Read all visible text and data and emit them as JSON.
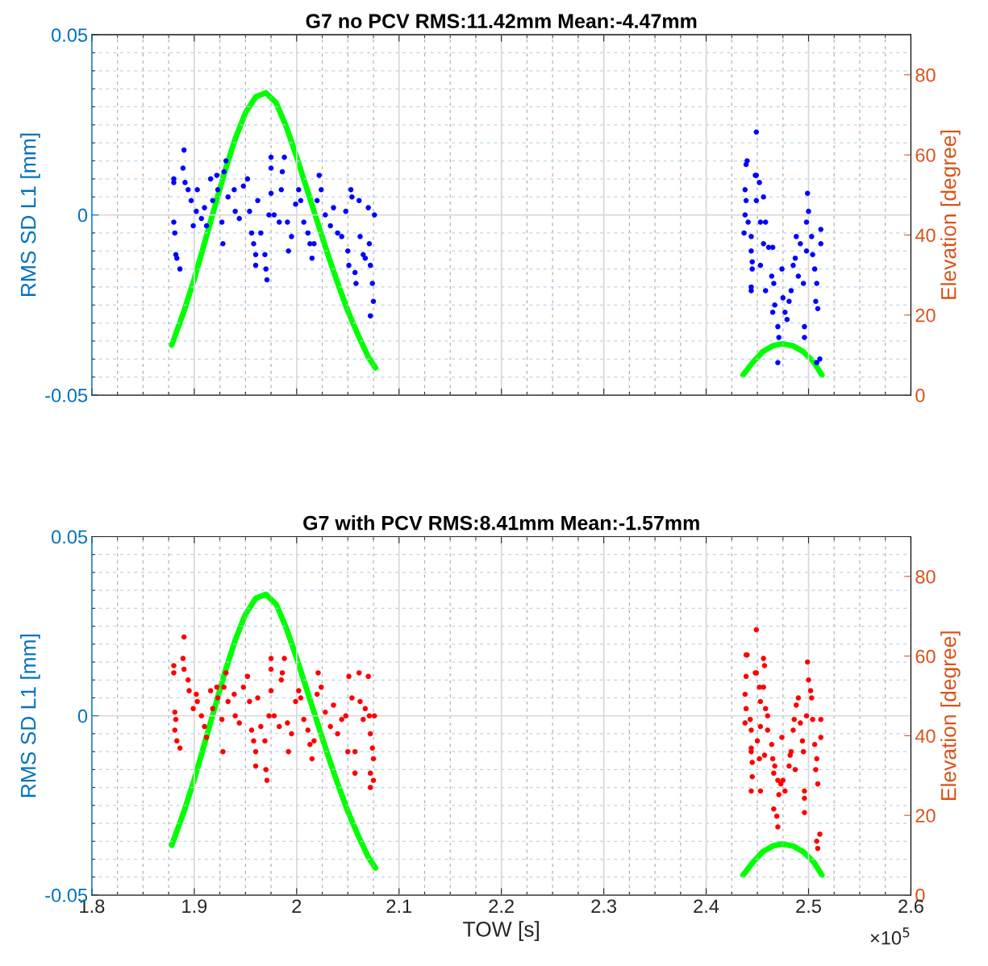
{
  "chart_data": [
    {
      "type": "scatter",
      "title": "G7 no PCV RMS:11.42mm Mean:-4.47mm",
      "ylabel": "RMS SD L1 [mm]",
      "y2label": "Elevation [degree]",
      "xlim": [
        1.8,
        2.6
      ],
      "xticks": [
        1.8,
        {
          "value": 1.825,
          "label": null
        },
        {
          "value": 1.85,
          "label": null
        },
        {
          "value": 1.875,
          "label": null
        },
        1.9,
        {
          "value": 1.925,
          "label": null
        },
        {
          "value": 1.95,
          "label": null
        },
        {
          "value": 1.975,
          "label": null
        },
        2,
        {
          "value": 2.025,
          "label": null
        },
        {
          "value": 2.05,
          "label": null
        },
        {
          "value": 2.075,
          "label": null
        },
        2.1,
        {
          "value": 2.125,
          "label": null
        },
        {
          "value": 2.15,
          "label": null
        },
        {
          "value": 2.175,
          "label": null
        },
        2.2,
        {
          "value": 2.225,
          "label": null
        },
        {
          "value": 2.25,
          "label": null
        },
        {
          "value": 2.275,
          "label": null
        },
        2.3,
        {
          "value": 2.325,
          "label": null
        },
        {
          "value": 2.35,
          "label": null
        },
        {
          "value": 2.375,
          "label": null
        },
        2.4,
        {
          "value": 2.425,
          "label": null
        },
        {
          "value": 2.45,
          "label": null
        },
        {
          "value": 2.475,
          "label": null
        },
        2.5,
        {
          "value": 2.525,
          "label": null
        },
        {
          "value": 2.55,
          "label": null
        },
        {
          "value": 2.575,
          "label": null
        },
        2.6
      ],
      "ylim": [
        -0.05,
        0.05
      ],
      "yticks": [
        -0.05,
        {
          "value": -0.045,
          "label": null
        },
        {
          "value": -0.04,
          "label": null
        },
        {
          "value": -0.035,
          "label": null
        },
        {
          "value": -0.03,
          "label": null
        },
        {
          "value": -0.025,
          "label": null
        },
        {
          "value": -0.02,
          "label": null
        },
        {
          "value": -0.015,
          "label": null
        },
        {
          "value": -0.01,
          "label": null
        },
        {
          "value": -0.005,
          "label": null
        },
        0,
        {
          "value": 0.005,
          "label": null
        },
        {
          "value": 0.01,
          "label": null
        },
        {
          "value": 0.015,
          "label": null
        },
        {
          "value": 0.02,
          "label": null
        },
        {
          "value": 0.025,
          "label": null
        },
        {
          "value": 0.03,
          "label": null
        },
        {
          "value": 0.035,
          "label": null
        },
        {
          "value": 0.04,
          "label": null
        },
        {
          "value": 0.045,
          "label": null
        },
        0.05
      ],
      "y2lim": [
        0,
        90
      ],
      "y2ticks": [
        0,
        20,
        40,
        60,
        80
      ],
      "grid": true,
      "marker": "circle",
      "tick_labels": "y",
      "series": [
        {
          "color": "#0000ff",
          "x": [
            1.88,
            1.88,
            1.88,
            1.881,
            1.882,
            1.883,
            1.886,
            1.89,
            1.889,
            1.891,
            1.894,
            1.897,
            1.899,
            1.902,
            1.903,
            1.907,
            1.91,
            1.912,
            1.916,
            1.918,
            1.922,
            1.923,
            1.927,
            1.928,
            1.929,
            1.931,
            1.933,
            1.939,
            1.94,
            1.944,
            1.948,
            1.952,
            1.954,
            1.956,
            1.958,
            1.96,
            1.96,
            1.962,
            1.965,
            1.969,
            1.97,
            1.971,
            1.973,
            1.975,
            1.975,
            1.975,
            1.978,
            1.983,
            1.985,
            1.986,
            1.988,
            1.991,
            1.992,
            1.995,
            1.999,
            2.002,
            2.004,
            2.007,
            2.011,
            2.013,
            2.015,
            2.017,
            2.02,
            2.022,
            2.024,
            2.028,
            2.033,
            2.036,
            2.04,
            2.044,
            2.048,
            2.05,
            2.051,
            2.053,
            2.054,
            2.057,
            2.058,
            2.061,
            2.062,
            2.065,
            2.067,
            2.07,
            2.071,
            2.072,
            2.074,
            2.075,
            2.072,
            2.076,
            2.439,
            2.44,
            2.438,
            2.439,
            2.438,
            2.437,
            2.441,
            2.444,
            2.444,
            2.445,
            2.445,
            2.444,
            2.444,
            2.448,
            2.449,
            2.449,
            2.452,
            2.449,
            2.456,
            2.453,
            2.458,
            2.456,
            2.461,
            2.453,
            2.465,
            2.464,
            2.466,
            2.458,
            2.465,
            2.467,
            2.47,
            2.471,
            2.47,
            2.474,
            2.475,
            2.477,
            2.479,
            2.481,
            2.483,
            2.485,
            2.487,
            2.488,
            2.49,
            2.492,
            2.495,
            2.496,
            2.496,
            2.498,
            2.499,
            2.5,
            2.498,
            2.503,
            2.504,
            2.506,
            2.508,
            2.507,
            2.509,
            2.512,
            2.512,
            2.511,
            2.508
          ],
          "values": [
            0.01,
            0.009,
            -0.002,
            -0.005,
            -0.011,
            -0.012,
            -0.015,
            0.018,
            0.013,
            0.009,
            0.007,
            0.004,
            -0.003,
            0.001,
            0.007,
            -0.001,
            0.002,
            -0.003,
            0.01,
            0.004,
            0.011,
            0.007,
            -0.002,
            -0.008,
            0.012,
            0.015,
            0.005,
            0.007,
            0.001,
            -0.001,
            0.008,
            0.01,
            0.001,
            -0.005,
            -0.008,
            -0.011,
            -0.014,
            0.004,
            -0.005,
            -0.011,
            -0.015,
            -0.018,
            0.0,
            0.013,
            0.016,
            0.006,
            0.0,
            -0.002,
            0.007,
            0.012,
            0.016,
            -0.002,
            -0.01,
            -0.006,
            0.003,
            0.007,
            0.004,
            -0.002,
            -0.005,
            -0.008,
            -0.012,
            -0.008,
            0.004,
            0.011,
            0.007,
            0.0,
            -0.003,
            0.002,
            -0.005,
            -0.006,
            0.001,
            -0.01,
            -0.014,
            0.007,
            0.005,
            -0.016,
            -0.019,
            0.004,
            -0.006,
            -0.011,
            -0.012,
            0.002,
            -0.008,
            -0.014,
            -0.019,
            -0.024,
            -0.028,
            0.0,
            0.014,
            0.015,
            0.007,
            0.004,
            0.0,
            -0.005,
            -0.002,
            -0.006,
            -0.01,
            -0.013,
            -0.015,
            -0.02,
            -0.021,
            0.011,
            0.011,
            0.023,
            0.009,
            0.004,
            0.005,
            -0.002,
            -0.002,
            -0.008,
            -0.009,
            -0.014,
            -0.009,
            -0.017,
            -0.019,
            -0.021,
            -0.027,
            -0.025,
            -0.031,
            -0.034,
            -0.041,
            -0.015,
            -0.023,
            -0.027,
            -0.029,
            -0.024,
            -0.021,
            -0.014,
            -0.012,
            -0.006,
            -0.017,
            -0.008,
            -0.019,
            -0.031,
            -0.034,
            -0.01,
            0.006,
            0.001,
            -0.002,
            -0.006,
            -0.011,
            -0.015,
            -0.019,
            -0.024,
            -0.026,
            -0.004,
            -0.008,
            -0.04,
            -0.041
          ]
        },
        {
          "type": "line",
          "axis": "y2",
          "color": "#00ff00",
          "marker": "none",
          "x": [
            1.878,
            1.89,
            1.9,
            1.91,
            1.92,
            1.93,
            1.94,
            1.95,
            1.96,
            1.97,
            1.98,
            1.99,
            2.0,
            2.01,
            2.02,
            2.03,
            2.04,
            2.05,
            2.06,
            2.07,
            2.077,
            2.25,
            2.436,
            2.445,
            2.455,
            2.465,
            2.474,
            2.485,
            2.495,
            2.505,
            2.513
          ],
          "values": [
            12.5,
            21,
            29,
            38,
            47,
            56,
            64,
            70.5,
            74.5,
            75.5,
            73,
            67,
            59.5,
            51.5,
            43.5,
            35.5,
            28,
            21,
            15,
            9.5,
            6.8,
            null,
            5,
            8,
            10.8,
            12.3,
            12.8,
            12.3,
            10.8,
            8.3,
            5
          ]
        }
      ]
    },
    {
      "type": "scatter",
      "title": "G7 with PCV RMS:8.41mm Mean:-1.57mm",
      "xlabel": "TOW [s]",
      "ylabel": "RMS SD L1 [mm]",
      "y2label": "Elevation [degree]",
      "xlim": [
        1.8,
        2.6
      ],
      "xticks": [
        1.8,
        {
          "value": 1.825,
          "label": null
        },
        {
          "value": 1.85,
          "label": null
        },
        {
          "value": 1.875,
          "label": null
        },
        1.9,
        {
          "value": 1.925,
          "label": null
        },
        {
          "value": 1.95,
          "label": null
        },
        {
          "value": 1.975,
          "label": null
        },
        2,
        {
          "value": 2.025,
          "label": null
        },
        {
          "value": 2.05,
          "label": null
        },
        {
          "value": 2.075,
          "label": null
        },
        2.1,
        {
          "value": 2.125,
          "label": null
        },
        {
          "value": 2.15,
          "label": null
        },
        {
          "value": 2.175,
          "label": null
        },
        2.2,
        {
          "value": 2.225,
          "label": null
        },
        {
          "value": 2.25,
          "label": null
        },
        {
          "value": 2.275,
          "label": null
        },
        2.3,
        {
          "value": 2.325,
          "label": null
        },
        {
          "value": 2.35,
          "label": null
        },
        {
          "value": 2.375,
          "label": null
        },
        2.4,
        {
          "value": 2.425,
          "label": null
        },
        {
          "value": 2.45,
          "label": null
        },
        {
          "value": 2.475,
          "label": null
        },
        2.5,
        {
          "value": 2.525,
          "label": null
        },
        {
          "value": 2.55,
          "label": null
        },
        {
          "value": 2.575,
          "label": null
        },
        2.6
      ],
      "ylim": [
        -0.05,
        0.05
      ],
      "yticks": [
        -0.05,
        {
          "value": -0.045,
          "label": null
        },
        {
          "value": -0.04,
          "label": null
        },
        {
          "value": -0.035,
          "label": null
        },
        {
          "value": -0.03,
          "label": null
        },
        {
          "value": -0.025,
          "label": null
        },
        {
          "value": -0.02,
          "label": null
        },
        {
          "value": -0.015,
          "label": null
        },
        {
          "value": -0.01,
          "label": null
        },
        {
          "value": -0.005,
          "label": null
        },
        0,
        {
          "value": 0.005,
          "label": null
        },
        {
          "value": 0.01,
          "label": null
        },
        {
          "value": 0.015,
          "label": null
        },
        {
          "value": 0.02,
          "label": null
        },
        {
          "value": 0.025,
          "label": null
        },
        {
          "value": 0.03,
          "label": null
        },
        {
          "value": 0.035,
          "label": null
        },
        {
          "value": 0.04,
          "label": null
        },
        {
          "value": 0.045,
          "label": null
        },
        0.05
      ],
      "y2lim": [
        0,
        90
      ],
      "y2ticks": [
        0,
        20,
        40,
        60,
        80
      ],
      "grid": true,
      "marker": "circle",
      "annotations": [
        "×10$^{5}$"
      ],
      "series": [
        {
          "color": "#ff0000",
          "x": [
            1.88,
            1.88,
            1.881,
            1.882,
            1.881,
            1.883,
            1.886,
            1.89,
            1.889,
            1.89,
            1.894,
            1.895,
            1.899,
            1.902,
            1.903,
            1.907,
            1.91,
            1.912,
            1.916,
            1.918,
            1.922,
            1.923,
            1.927,
            1.928,
            1.929,
            1.931,
            1.933,
            1.939,
            1.94,
            1.944,
            1.948,
            1.952,
            1.954,
            1.956,
            1.958,
            1.96,
            1.96,
            1.962,
            1.965,
            1.969,
            1.97,
            1.971,
            1.973,
            1.975,
            1.975,
            1.975,
            1.978,
            1.983,
            1.985,
            1.986,
            1.988,
            1.991,
            1.992,
            1.995,
            1.999,
            2.002,
            2.004,
            2.007,
            2.011,
            2.013,
            2.015,
            2.017,
            2.02,
            2.021,
            2.024,
            2.028,
            2.033,
            2.036,
            2.04,
            2.044,
            2.048,
            2.05,
            2.051,
            2.054,
            2.057,
            2.057,
            2.061,
            2.062,
            2.065,
            2.067,
            2.07,
            2.071,
            2.072,
            2.074,
            2.075,
            2.072,
            2.075,
            2.072,
            2.076,
            2.449,
            2.439,
            2.44,
            2.439,
            2.438,
            2.439,
            2.438,
            2.443,
            2.444,
            2.444,
            2.444,
            2.445,
            2.445,
            2.444,
            2.448,
            2.449,
            2.452,
            2.456,
            2.457,
            2.456,
            2.453,
            2.458,
            2.46,
            2.46,
            2.453,
            2.45,
            2.452,
            2.453,
            2.457,
            2.464,
            2.465,
            2.467,
            2.466,
            2.47,
            2.473,
            2.474,
            2.471,
            2.466,
            2.469,
            2.47,
            2.475,
            2.477,
            2.481,
            2.482,
            2.483,
            2.485,
            2.486,
            2.487,
            2.488,
            2.49,
            2.492,
            2.494,
            2.495,
            2.496,
            2.496,
            2.496,
            2.498,
            2.499,
            2.5,
            2.502,
            2.503,
            2.504,
            2.506,
            2.508,
            2.507,
            2.509,
            2.512,
            2.512,
            2.511,
            2.508,
            2.509
          ],
          "values": [
            0.014,
            0.012,
            0.001,
            -0.001,
            -0.004,
            -0.007,
            -0.009,
            0.022,
            0.016,
            0.013,
            0.01,
            0.007,
            0.002,
            0.006,
            0.004,
            0.0,
            -0.003,
            -0.006,
            0.007,
            0.002,
            0.008,
            0.005,
            -0.001,
            -0.01,
            0.008,
            0.012,
            0.004,
            0.006,
            0.0,
            -0.002,
            0.008,
            0.011,
            0.004,
            -0.004,
            -0.007,
            -0.01,
            -0.014,
            0.005,
            -0.003,
            -0.007,
            -0.015,
            -0.018,
            0.0,
            0.016,
            0.013,
            0.007,
            0.0,
            -0.003,
            0.01,
            0.012,
            0.016,
            -0.002,
            -0.01,
            -0.005,
            0.004,
            0.007,
            0.005,
            -0.001,
            -0.004,
            -0.008,
            -0.012,
            -0.007,
            0.006,
            0.012,
            0.008,
            0.001,
            -0.003,
            0.003,
            -0.005,
            -0.001,
            0.0,
            -0.01,
            0.011,
            0.005,
            -0.01,
            -0.016,
            0.012,
            0.004,
            -0.001,
            0.002,
            0.011,
            0.0,
            -0.005,
            -0.009,
            -0.012,
            -0.016,
            -0.018,
            -0.02,
            0.0,
            0.024,
            0.017,
            0.017,
            0.011,
            0.006,
            0.002,
            -0.002,
            -0.001,
            -0.004,
            -0.009,
            -0.01,
            -0.013,
            -0.017,
            -0.021,
            0.012,
            0.012,
            0.008,
            0.016,
            0.014,
            0.008,
            0.004,
            0.002,
            0.0,
            -0.004,
            -0.003,
            -0.007,
            -0.012,
            -0.021,
            -0.011,
            -0.008,
            -0.012,
            -0.014,
            -0.016,
            -0.018,
            -0.019,
            -0.006,
            -0.022,
            -0.026,
            -0.028,
            -0.031,
            -0.018,
            -0.021,
            -0.014,
            -0.011,
            -0.01,
            -0.004,
            -0.001,
            -0.015,
            0.003,
            0.005,
            -0.002,
            -0.007,
            -0.01,
            -0.021,
            -0.023,
            -0.027,
            0.0,
            0.015,
            0.01,
            0.007,
            0.005,
            -0.001,
            -0.008,
            -0.012,
            -0.015,
            -0.019,
            -0.001,
            -0.006,
            -0.033,
            -0.035,
            -0.037
          ]
        },
        {
          "type": "line",
          "axis": "y2",
          "color": "#00ff00",
          "marker": "none",
          "x": [
            1.878,
            1.89,
            1.9,
            1.91,
            1.92,
            1.93,
            1.94,
            1.95,
            1.96,
            1.97,
            1.98,
            1.99,
            2.0,
            2.01,
            2.02,
            2.03,
            2.04,
            2.05,
            2.06,
            2.07,
            2.077,
            2.25,
            2.436,
            2.445,
            2.455,
            2.465,
            2.474,
            2.485,
            2.495,
            2.505,
            2.513
          ],
          "values": [
            12.5,
            21,
            29,
            38,
            47,
            56,
            64,
            70.5,
            74.5,
            75.5,
            73,
            67,
            59.5,
            51.5,
            43.5,
            35.5,
            28,
            21,
            15,
            9.5,
            6.8,
            null,
            5,
            8,
            10.8,
            12.3,
            12.8,
            12.3,
            10.8,
            8.3,
            5
          ]
        }
      ]
    }
  ]
}
